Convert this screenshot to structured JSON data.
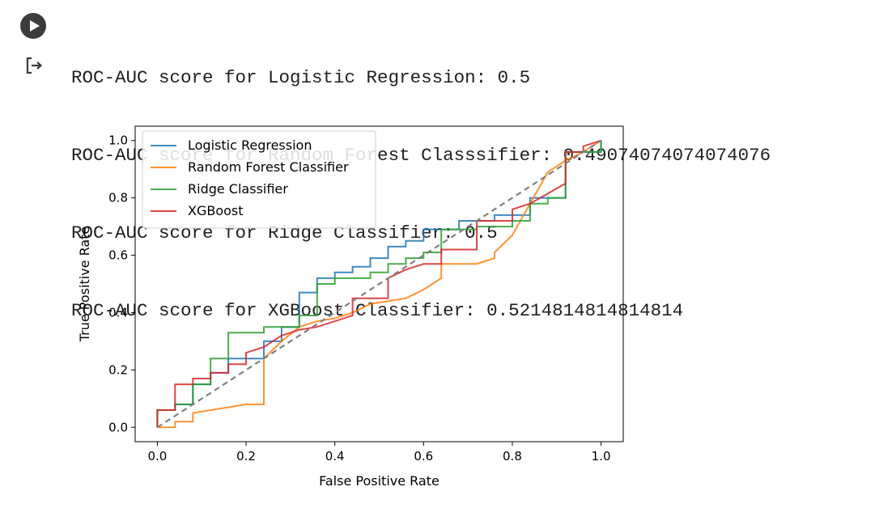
{
  "cell": {
    "run_button_icon": "play-icon",
    "output_icon": "output-redirect-icon",
    "output_lines": [
      "ROC-AUC score for Logistic Regression: 0.5",
      "ROC-AUC score for Random Forest Classsifier: 0.49074074074074076",
      "ROC-AUC score for Ridge Classifier: 0.5",
      "ROC-AUC score for XGBoost Classifier: 0.5214814814814814"
    ]
  },
  "chart_data": {
    "type": "line",
    "title": "",
    "xlabel": "False Positive Rate",
    "ylabel": "True Positive Rate",
    "xlim": [
      -0.05,
      1.05
    ],
    "ylim": [
      -0.05,
      1.05
    ],
    "xticks": [
      "0.0",
      "0.2",
      "0.4",
      "0.6",
      "0.8",
      "1.0"
    ],
    "yticks": [
      "0.0",
      "0.2",
      "0.4",
      "0.6",
      "0.8",
      "1.0"
    ],
    "grid": false,
    "legend_position": "upper-left",
    "series": [
      {
        "name": "Logistic Regression",
        "color": "#1f77b4",
        "x": [
          0.0,
          0.0,
          0.04,
          0.04,
          0.08,
          0.08,
          0.12,
          0.12,
          0.16,
          0.16,
          0.24,
          0.24,
          0.28,
          0.28,
          0.32,
          0.32,
          0.36,
          0.36,
          0.4,
          0.4,
          0.44,
          0.44,
          0.48,
          0.48,
          0.52,
          0.52,
          0.56,
          0.56,
          0.6,
          0.6,
          0.68,
          0.68,
          0.76,
          0.76,
          0.84,
          0.84,
          0.92,
          0.92,
          1.0,
          1.0
        ],
        "y": [
          0.0,
          0.06,
          0.06,
          0.08,
          0.08,
          0.15,
          0.15,
          0.19,
          0.19,
          0.24,
          0.24,
          0.3,
          0.3,
          0.35,
          0.35,
          0.47,
          0.47,
          0.52,
          0.52,
          0.54,
          0.54,
          0.56,
          0.56,
          0.59,
          0.59,
          0.63,
          0.63,
          0.65,
          0.65,
          0.69,
          0.69,
          0.72,
          0.72,
          0.74,
          0.74,
          0.8,
          0.8,
          0.96,
          0.96,
          1.0
        ]
      },
      {
        "name": "Random Forest Classifier",
        "color": "#ff7f0e",
        "x": [
          0.0,
          0.0,
          0.04,
          0.04,
          0.08,
          0.08,
          0.12,
          0.16,
          0.2,
          0.24,
          0.24,
          0.28,
          0.32,
          0.36,
          0.4,
          0.44,
          0.48,
          0.52,
          0.56,
          0.6,
          0.64,
          0.64,
          0.72,
          0.76,
          0.76,
          0.8,
          0.84,
          0.88,
          0.92,
          0.96,
          1.0
        ],
        "y": [
          0.0,
          0.0,
          0.0,
          0.02,
          0.02,
          0.05,
          0.06,
          0.07,
          0.08,
          0.08,
          0.24,
          0.3,
          0.35,
          0.37,
          0.38,
          0.4,
          0.43,
          0.44,
          0.45,
          0.48,
          0.52,
          0.57,
          0.57,
          0.59,
          0.61,
          0.67,
          0.78,
          0.89,
          0.93,
          0.96,
          1.0
        ]
      },
      {
        "name": "Ridge Classifier",
        "color": "#2ca02c",
        "x": [
          0.0,
          0.0,
          0.04,
          0.04,
          0.08,
          0.08,
          0.12,
          0.12,
          0.16,
          0.16,
          0.24,
          0.24,
          0.32,
          0.32,
          0.36,
          0.36,
          0.4,
          0.4,
          0.48,
          0.48,
          0.52,
          0.52,
          0.56,
          0.56,
          0.6,
          0.6,
          0.64,
          0.64,
          0.72,
          0.72,
          0.8,
          0.8,
          0.84,
          0.84,
          0.88,
          0.88,
          0.92,
          0.92,
          1.0,
          1.0
        ],
        "y": [
          0.0,
          0.06,
          0.06,
          0.08,
          0.08,
          0.15,
          0.15,
          0.24,
          0.24,
          0.33,
          0.33,
          0.35,
          0.35,
          0.39,
          0.39,
          0.5,
          0.5,
          0.52,
          0.52,
          0.54,
          0.54,
          0.57,
          0.57,
          0.59,
          0.59,
          0.61,
          0.61,
          0.69,
          0.69,
          0.7,
          0.7,
          0.72,
          0.72,
          0.78,
          0.78,
          0.8,
          0.8,
          0.96,
          0.96,
          1.0
        ]
      },
      {
        "name": "XGBoost",
        "color": "#d62728",
        "x": [
          0.0,
          0.0,
          0.04,
          0.04,
          0.08,
          0.08,
          0.12,
          0.12,
          0.16,
          0.16,
          0.2,
          0.2,
          0.24,
          0.28,
          0.32,
          0.36,
          0.4,
          0.44,
          0.44,
          0.52,
          0.52,
          0.56,
          0.6,
          0.64,
          0.64,
          0.72,
          0.72,
          0.8,
          0.8,
          0.84,
          0.92,
          0.92,
          0.96,
          0.96,
          1.0
        ],
        "y": [
          0.0,
          0.06,
          0.06,
          0.15,
          0.15,
          0.17,
          0.17,
          0.19,
          0.19,
          0.22,
          0.22,
          0.26,
          0.28,
          0.32,
          0.34,
          0.35,
          0.37,
          0.39,
          0.45,
          0.45,
          0.52,
          0.55,
          0.57,
          0.57,
          0.62,
          0.62,
          0.72,
          0.72,
          0.76,
          0.78,
          0.85,
          0.96,
          0.96,
          0.98,
          1.0
        ]
      },
      {
        "name": "",
        "role": "chance-diagonal",
        "color": "#808080",
        "dashed": true,
        "x": [
          0.0,
          1.0
        ],
        "y": [
          0.0,
          1.0
        ]
      }
    ]
  }
}
